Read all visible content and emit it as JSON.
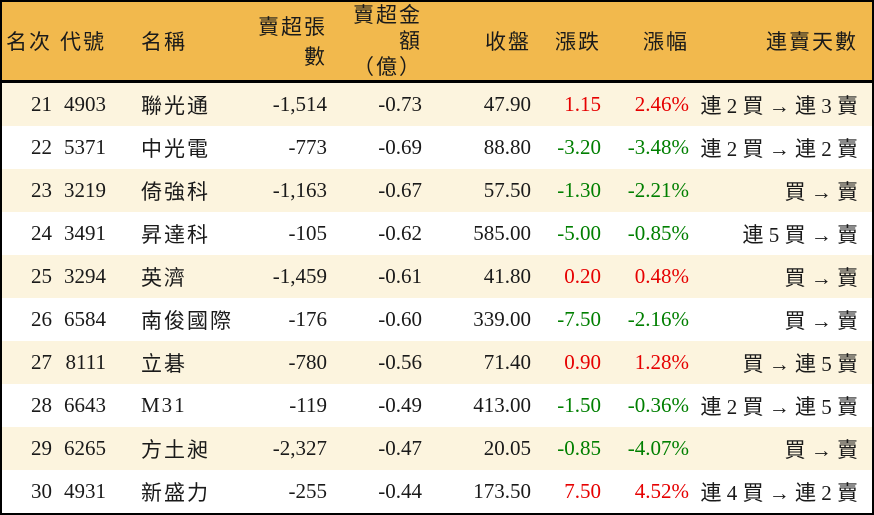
{
  "colors": {
    "header_bg": "#F2B94D",
    "stripe_bg": "#FCF4DE",
    "row_bg": "#FFFFFF",
    "up": "#E60000",
    "down": "#007F00",
    "line": "#000000",
    "text": "#1A1A1A"
  },
  "chart_data": {
    "type": "table",
    "title": "",
    "legend_note": "red = price up, green = price down",
    "columns": [
      {
        "key": "rank",
        "label": "名次"
      },
      {
        "key": "code",
        "label": "代號"
      },
      {
        "key": "name",
        "label": "名稱"
      },
      {
        "key": "sell_volume",
        "label": "賣超張數"
      },
      {
        "key": "sell_amount",
        "label": "賣超金額",
        "label2": "（億）"
      },
      {
        "key": "close",
        "label": "收盤"
      },
      {
        "key": "change",
        "label": "漲跌"
      },
      {
        "key": "change_pct",
        "label": "漲幅"
      },
      {
        "key": "streak",
        "label": "連賣天數"
      }
    ],
    "rows": [
      {
        "rank": "21",
        "code": "4903",
        "name": "聯光通",
        "sell_volume": "-1,514",
        "sell_amount": "-0.73",
        "close": "47.90",
        "change": "1.15",
        "change_pct": "2.46%",
        "dir": "up",
        "streak": "連 2 買 → 連 3 賣"
      },
      {
        "rank": "22",
        "code": "5371",
        "name": "中光電",
        "sell_volume": "-773",
        "sell_amount": "-0.69",
        "close": "88.80",
        "change": "-3.20",
        "change_pct": "-3.48%",
        "dir": "down",
        "streak": "連 2 買 → 連 2 賣"
      },
      {
        "rank": "23",
        "code": "3219",
        "name": "倚強科",
        "sell_volume": "-1,163",
        "sell_amount": "-0.67",
        "close": "57.50",
        "change": "-1.30",
        "change_pct": "-2.21%",
        "dir": "down",
        "streak": "買 → 賣"
      },
      {
        "rank": "24",
        "code": "3491",
        "name": "昇達科",
        "sell_volume": "-105",
        "sell_amount": "-0.62",
        "close": "585.00",
        "change": "-5.00",
        "change_pct": "-0.85%",
        "dir": "down",
        "streak": "連 5 買 → 賣"
      },
      {
        "rank": "25",
        "code": "3294",
        "name": "英濟",
        "sell_volume": "-1,459",
        "sell_amount": "-0.61",
        "close": "41.80",
        "change": "0.20",
        "change_pct": "0.48%",
        "dir": "up",
        "streak": "買 → 賣"
      },
      {
        "rank": "26",
        "code": "6584",
        "name": "南俊國際",
        "sell_volume": "-176",
        "sell_amount": "-0.60",
        "close": "339.00",
        "change": "-7.50",
        "change_pct": "-2.16%",
        "dir": "down",
        "streak": "買 → 賣"
      },
      {
        "rank": "27",
        "code": "8111",
        "name": "立碁",
        "sell_volume": "-780",
        "sell_amount": "-0.56",
        "close": "71.40",
        "change": "0.90",
        "change_pct": "1.28%",
        "dir": "up",
        "streak": "買 → 連 5 賣"
      },
      {
        "rank": "28",
        "code": "6643",
        "name": "M31",
        "sell_volume": "-119",
        "sell_amount": "-0.49",
        "close": "413.00",
        "change": "-1.50",
        "change_pct": "-0.36%",
        "dir": "down",
        "streak": "連 2 買 → 連 5 賣"
      },
      {
        "rank": "29",
        "code": "6265",
        "name": "方土昶",
        "sell_volume": "-2,327",
        "sell_amount": "-0.47",
        "close": "20.05",
        "change": "-0.85",
        "change_pct": "-4.07%",
        "dir": "down",
        "streak": "買 → 賣"
      },
      {
        "rank": "30",
        "code": "4931",
        "name": "新盛力",
        "sell_volume": "-255",
        "sell_amount": "-0.44",
        "close": "173.50",
        "change": "7.50",
        "change_pct": "4.52%",
        "dir": "up",
        "streak": "連 4 買 → 連 2 賣"
      }
    ]
  }
}
